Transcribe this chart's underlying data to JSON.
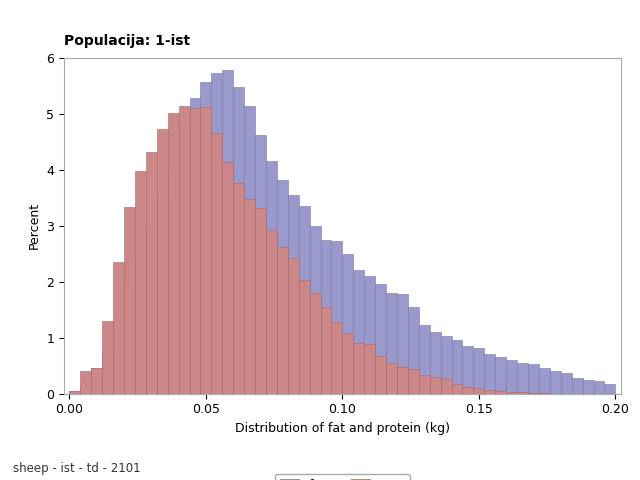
{
  "title": "Populacija: 1-ist",
  "subtitle": "sheep - ist - td - 2101",
  "xlabel": "Distribution of fat and protein (kg)",
  "ylabel": "Percent",
  "xlim": [
    -0.002,
    0.202
  ],
  "ylim": [
    0,
    6
  ],
  "xticks": [
    0.0,
    0.05,
    0.1,
    0.15,
    0.2
  ],
  "yticks": [
    0,
    1,
    2,
    3,
    4,
    5,
    6
  ],
  "bin_width": 0.004,
  "bin_centers": [
    0.002,
    0.006,
    0.01,
    0.014,
    0.018,
    0.022,
    0.026,
    0.03,
    0.034,
    0.038,
    0.042,
    0.046,
    0.05,
    0.054,
    0.058,
    0.062,
    0.066,
    0.07,
    0.074,
    0.078,
    0.082,
    0.086,
    0.09,
    0.094,
    0.098,
    0.102,
    0.106,
    0.11,
    0.114,
    0.118,
    0.122,
    0.126,
    0.13,
    0.134,
    0.138,
    0.142,
    0.146,
    0.15,
    0.154,
    0.158,
    0.162,
    0.166,
    0.17,
    0.174,
    0.178,
    0.182,
    0.186,
    0.19,
    0.194,
    0.198
  ],
  "fat_values": [
    0.05,
    0.13,
    0.45,
    0.78,
    1.3,
    1.9,
    2.33,
    3.0,
    3.55,
    3.98,
    4.72,
    5.27,
    5.56,
    5.73,
    5.77,
    5.48,
    5.13,
    4.62,
    4.16,
    3.81,
    3.55,
    3.35,
    3.0,
    2.74,
    2.72,
    2.5,
    2.2,
    2.1,
    1.95,
    1.8,
    1.78,
    1.55,
    1.22,
    1.1,
    1.03,
    0.95,
    0.85,
    0.82,
    0.7,
    0.65,
    0.6,
    0.55,
    0.52,
    0.46,
    0.4,
    0.37,
    0.28,
    0.25,
    0.22,
    0.18
  ],
  "prot_values": [
    0.05,
    0.4,
    0.45,
    1.3,
    2.35,
    3.33,
    3.98,
    4.32,
    4.72,
    5.01,
    5.14,
    5.1,
    5.12,
    4.65,
    4.13,
    3.76,
    3.47,
    3.31,
    2.93,
    2.62,
    2.42,
    2.03,
    1.8,
    1.54,
    1.28,
    1.08,
    0.9,
    0.89,
    0.68,
    0.55,
    0.47,
    0.44,
    0.34,
    0.29,
    0.26,
    0.18,
    0.12,
    0.1,
    0.07,
    0.05,
    0.03,
    0.02,
    0.01,
    0.01,
    0.0,
    0.0,
    0.0,
    0.0,
    0.0,
    0.0
  ],
  "fat_color": "#9999CC",
  "prot_color": "#CC8888",
  "fat_edge_color": "#7777AA",
  "prot_edge_color": "#AA6666",
  "background_color": "#ffffff",
  "plot_bg_color": "#ffffff",
  "legend_labels": [
    "fat",
    "prot"
  ],
  "title_fontsize": 10,
  "label_fontsize": 9,
  "tick_fontsize": 9
}
